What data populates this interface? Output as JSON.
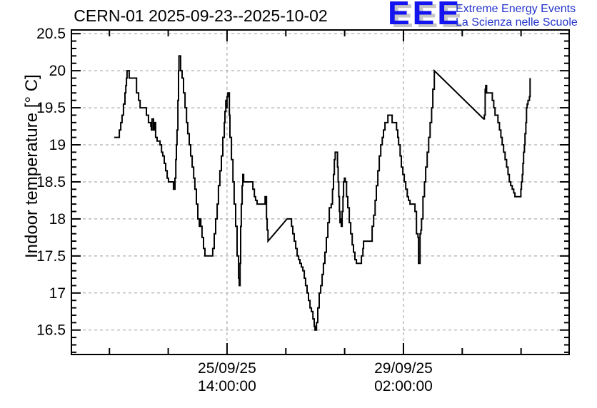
{
  "header": {
    "title": "CERN-01 2025-09-23--2025-10-02",
    "logo": {
      "acronym": "EEE",
      "line1": "Extreme Energy Events",
      "line2": "La Scienza nelle Scuole",
      "acronym_color": "#1414f0",
      "shadow_color": "#c6c6c6",
      "text_color": "#2233cc"
    }
  },
  "chart_data": {
    "type": "line",
    "title": "CERN-01 2025-09-23--2025-10-02",
    "xlabel": "",
    "ylabel": "Indoor temperature [° C]",
    "x_unit": "hours since 2025-09-23 00:00",
    "xlim": [
      -12.1,
      224.9
    ],
    "ylim": [
      16.17,
      20.55
    ],
    "grid": true,
    "line_color": "#000000",
    "grid_color": "#999999",
    "y_ticks": [
      {
        "v": 20.5,
        "label": "20.5"
      },
      {
        "v": 20.0,
        "label": "20"
      },
      {
        "v": 19.5,
        "label": "19.5"
      },
      {
        "v": 19.0,
        "label": "19"
      },
      {
        "v": 18.5,
        "label": "18.5"
      },
      {
        "v": 18.0,
        "label": "18"
      },
      {
        "v": 17.5,
        "label": "17.5"
      },
      {
        "v": 17.0,
        "label": "17"
      },
      {
        "v": 16.5,
        "label": "16.5"
      }
    ],
    "y_minor_step": 0.1,
    "x_major_ticks": [
      {
        "t": 62,
        "label_line1": "25/09/25",
        "label_line2": "14:00:00"
      },
      {
        "t": 146,
        "label_line1": "29/09/25",
        "label_line2": "02:00:00"
      }
    ],
    "x_minor_ticks": [
      6,
      34,
      90,
      118,
      174,
      202
    ],
    "series": [
      {
        "name": "indoor_temperature",
        "points": [
          [
            8.3,
            19.1
          ],
          [
            10.3,
            19.1
          ],
          [
            10.7,
            19.2
          ],
          [
            11.4,
            19.3
          ],
          [
            12.0,
            19.4
          ],
          [
            12.7,
            19.55
          ],
          [
            13.4,
            19.7
          ],
          [
            13.8,
            19.8
          ],
          [
            14.1,
            19.9
          ],
          [
            14.4,
            20.0
          ],
          [
            15.1,
            20.0
          ],
          [
            15.4,
            19.9
          ],
          [
            18.2,
            19.9
          ],
          [
            18.9,
            19.7
          ],
          [
            19.9,
            19.6
          ],
          [
            20.6,
            19.5
          ],
          [
            22.9,
            19.5
          ],
          [
            23.6,
            19.4
          ],
          [
            24.6,
            19.3
          ],
          [
            25.7,
            19.25
          ],
          [
            26.0,
            19.2
          ],
          [
            26.3,
            19.35
          ],
          [
            27.0,
            19.2
          ],
          [
            27.4,
            19.3
          ],
          [
            28.0,
            19.1
          ],
          [
            28.7,
            19.05
          ],
          [
            30.1,
            19.0
          ],
          [
            30.8,
            18.9
          ],
          [
            31.4,
            18.85
          ],
          [
            32.1,
            18.75
          ],
          [
            32.8,
            18.65
          ],
          [
            33.5,
            18.55
          ],
          [
            34.1,
            18.5
          ],
          [
            35.9,
            18.5
          ],
          [
            36.5,
            18.4
          ],
          [
            37.2,
            18.55
          ],
          [
            37.6,
            18.8
          ],
          [
            37.9,
            19.0
          ],
          [
            38.2,
            19.2
          ],
          [
            38.6,
            19.6
          ],
          [
            38.9,
            20.0
          ],
          [
            39.1,
            20.2
          ],
          [
            39.6,
            20.2
          ],
          [
            39.9,
            20.0
          ],
          [
            40.6,
            19.9
          ],
          [
            41.3,
            19.7
          ],
          [
            42.0,
            19.5
          ],
          [
            42.7,
            19.3
          ],
          [
            43.3,
            19.15
          ],
          [
            44.0,
            19.0
          ],
          [
            44.7,
            18.85
          ],
          [
            45.4,
            18.7
          ],
          [
            46.1,
            18.55
          ],
          [
            46.7,
            18.4
          ],
          [
            47.4,
            18.2
          ],
          [
            48.1,
            18.0
          ],
          [
            48.8,
            17.9
          ],
          [
            49.1,
            18.0
          ],
          [
            49.5,
            17.9
          ],
          [
            50.1,
            17.75
          ],
          [
            50.8,
            17.6
          ],
          [
            51.5,
            17.5
          ],
          [
            54.6,
            17.5
          ],
          [
            55.2,
            17.6
          ],
          [
            55.9,
            17.8
          ],
          [
            56.6,
            18.0
          ],
          [
            57.3,
            18.2
          ],
          [
            57.9,
            18.45
          ],
          [
            58.6,
            18.65
          ],
          [
            59.3,
            18.85
          ],
          [
            60.0,
            19.1
          ],
          [
            60.7,
            19.3
          ],
          [
            61.0,
            19.45
          ],
          [
            61.4,
            19.6
          ],
          [
            61.7,
            19.5
          ],
          [
            62.0,
            19.65
          ],
          [
            62.4,
            19.7
          ],
          [
            62.7,
            19.7
          ],
          [
            63.1,
            19.4
          ],
          [
            63.4,
            19.1
          ],
          [
            64.1,
            18.8
          ],
          [
            64.8,
            18.5
          ],
          [
            65.4,
            18.2
          ],
          [
            66.1,
            17.9
          ],
          [
            66.8,
            17.5
          ],
          [
            67.5,
            17.2
          ],
          [
            67.8,
            17.1
          ],
          [
            68.2,
            17.4
          ],
          [
            68.5,
            17.9
          ],
          [
            68.8,
            18.2
          ],
          [
            69.2,
            18.45
          ],
          [
            69.5,
            18.6
          ],
          [
            69.9,
            18.5
          ],
          [
            73.6,
            18.5
          ],
          [
            74.3,
            18.4
          ],
          [
            75.0,
            18.3
          ],
          [
            75.6,
            18.25
          ],
          [
            76.3,
            18.2
          ],
          [
            79.7,
            18.2
          ],
          [
            80.1,
            18.3
          ],
          [
            80.4,
            18.3
          ],
          [
            80.8,
            18.0
          ],
          [
            81.1,
            17.85
          ],
          [
            81.5,
            17.7
          ],
          [
            90.6,
            18.0
          ],
          [
            92.3,
            18.0
          ],
          [
            92.7,
            17.9
          ],
          [
            93.3,
            17.8
          ],
          [
            94.0,
            17.7
          ],
          [
            94.7,
            17.6
          ],
          [
            95.4,
            17.5
          ],
          [
            96.1,
            17.45
          ],
          [
            96.7,
            17.4
          ],
          [
            97.4,
            17.35
          ],
          [
            98.1,
            17.3
          ],
          [
            98.8,
            17.2
          ],
          [
            99.4,
            17.1
          ],
          [
            100.1,
            17.0
          ],
          [
            100.8,
            16.9
          ],
          [
            101.5,
            16.8
          ],
          [
            102.2,
            16.75
          ],
          [
            102.9,
            16.65
          ],
          [
            103.5,
            16.55
          ],
          [
            103.9,
            16.5
          ],
          [
            104.2,
            16.5
          ],
          [
            104.6,
            16.6
          ],
          [
            105.2,
            16.8
          ],
          [
            105.9,
            17.0
          ],
          [
            106.6,
            17.1
          ],
          [
            107.3,
            17.25
          ],
          [
            107.9,
            17.4
          ],
          [
            108.6,
            17.55
          ],
          [
            109.3,
            17.75
          ],
          [
            110.0,
            17.95
          ],
          [
            110.7,
            18.15
          ],
          [
            111.6,
            18.2
          ],
          [
            112.2,
            18.4
          ],
          [
            112.7,
            18.6
          ],
          [
            113.1,
            18.8
          ],
          [
            113.5,
            18.9
          ],
          [
            114.3,
            18.9
          ],
          [
            114.6,
            18.7
          ],
          [
            114.9,
            18.5
          ],
          [
            115.2,
            18.3
          ],
          [
            115.5,
            18.1
          ],
          [
            115.8,
            17.95
          ],
          [
            116.1,
            18.0
          ],
          [
            116.4,
            17.9
          ],
          [
            116.8,
            18.1
          ],
          [
            117.2,
            18.3
          ],
          [
            117.5,
            18.5
          ],
          [
            117.9,
            18.55
          ],
          [
            118.3,
            18.5
          ],
          [
            118.9,
            18.3
          ],
          [
            119.5,
            18.15
          ],
          [
            120.2,
            17.95
          ],
          [
            120.9,
            17.8
          ],
          [
            121.6,
            17.65
          ],
          [
            122.2,
            17.55
          ],
          [
            122.9,
            17.45
          ],
          [
            123.6,
            17.4
          ],
          [
            125.6,
            17.4
          ],
          [
            126.0,
            17.5
          ],
          [
            126.7,
            17.6
          ],
          [
            127.0,
            17.7
          ],
          [
            130.4,
            17.7
          ],
          [
            131.1,
            17.9
          ],
          [
            131.8,
            18.05
          ],
          [
            132.5,
            18.25
          ],
          [
            133.1,
            18.45
          ],
          [
            133.8,
            18.65
          ],
          [
            134.5,
            18.85
          ],
          [
            135.2,
            19.0
          ],
          [
            135.9,
            19.1
          ],
          [
            136.5,
            19.2
          ],
          [
            137.2,
            19.3
          ],
          [
            138.2,
            19.3
          ],
          [
            138.6,
            19.4
          ],
          [
            139.9,
            19.4
          ],
          [
            140.6,
            19.3
          ],
          [
            142.0,
            19.3
          ],
          [
            142.7,
            19.2
          ],
          [
            143.3,
            19.1
          ],
          [
            143.7,
            19.0
          ],
          [
            144.4,
            18.85
          ],
          [
            145.0,
            18.7
          ],
          [
            145.7,
            18.6
          ],
          [
            146.4,
            18.5
          ],
          [
            147.1,
            18.4
          ],
          [
            147.8,
            18.3
          ],
          [
            148.4,
            18.25
          ],
          [
            149.1,
            18.2
          ],
          [
            150.8,
            18.2
          ],
          [
            151.5,
            18.1
          ],
          [
            152.2,
            17.8
          ],
          [
            152.9,
            17.75
          ],
          [
            153.2,
            17.4
          ],
          [
            153.6,
            17.4
          ],
          [
            153.9,
            17.8
          ],
          [
            154.3,
            17.85
          ],
          [
            154.6,
            18.0
          ],
          [
            155.3,
            18.3
          ],
          [
            156.0,
            18.5
          ],
          [
            156.6,
            18.7
          ],
          [
            157.3,
            18.9
          ],
          [
            158.0,
            19.1
          ],
          [
            158.7,
            19.3
          ],
          [
            159.4,
            19.5
          ],
          [
            160.0,
            19.75
          ],
          [
            160.7,
            20.0
          ],
          [
            184.2,
            19.35
          ],
          [
            184.5,
            19.4
          ],
          [
            184.9,
            19.75
          ],
          [
            185.2,
            19.8
          ],
          [
            185.6,
            19.7
          ],
          [
            187.6,
            19.7
          ],
          [
            188.3,
            19.6
          ],
          [
            189.0,
            19.5
          ],
          [
            189.6,
            19.4
          ],
          [
            191.0,
            19.3
          ],
          [
            191.7,
            19.2
          ],
          [
            192.4,
            19.1
          ],
          [
            193.0,
            19.0
          ],
          [
            193.7,
            18.9
          ],
          [
            194.4,
            18.8
          ],
          [
            195.1,
            18.7
          ],
          [
            195.8,
            18.6
          ],
          [
            196.4,
            18.5
          ],
          [
            197.1,
            18.45
          ],
          [
            197.8,
            18.4
          ],
          [
            198.5,
            18.35
          ],
          [
            199.1,
            18.3
          ],
          [
            201.2,
            18.3
          ],
          [
            201.9,
            18.4
          ],
          [
            202.2,
            18.5
          ],
          [
            202.6,
            18.6
          ],
          [
            202.9,
            18.75
          ],
          [
            203.2,
            18.9
          ],
          [
            203.6,
            19.0
          ],
          [
            203.9,
            19.15
          ],
          [
            204.3,
            19.3
          ],
          [
            204.6,
            19.5
          ],
          [
            204.9,
            19.55
          ],
          [
            205.3,
            19.6
          ],
          [
            206.0,
            19.65
          ],
          [
            206.3,
            19.9
          ]
        ]
      }
    ]
  }
}
